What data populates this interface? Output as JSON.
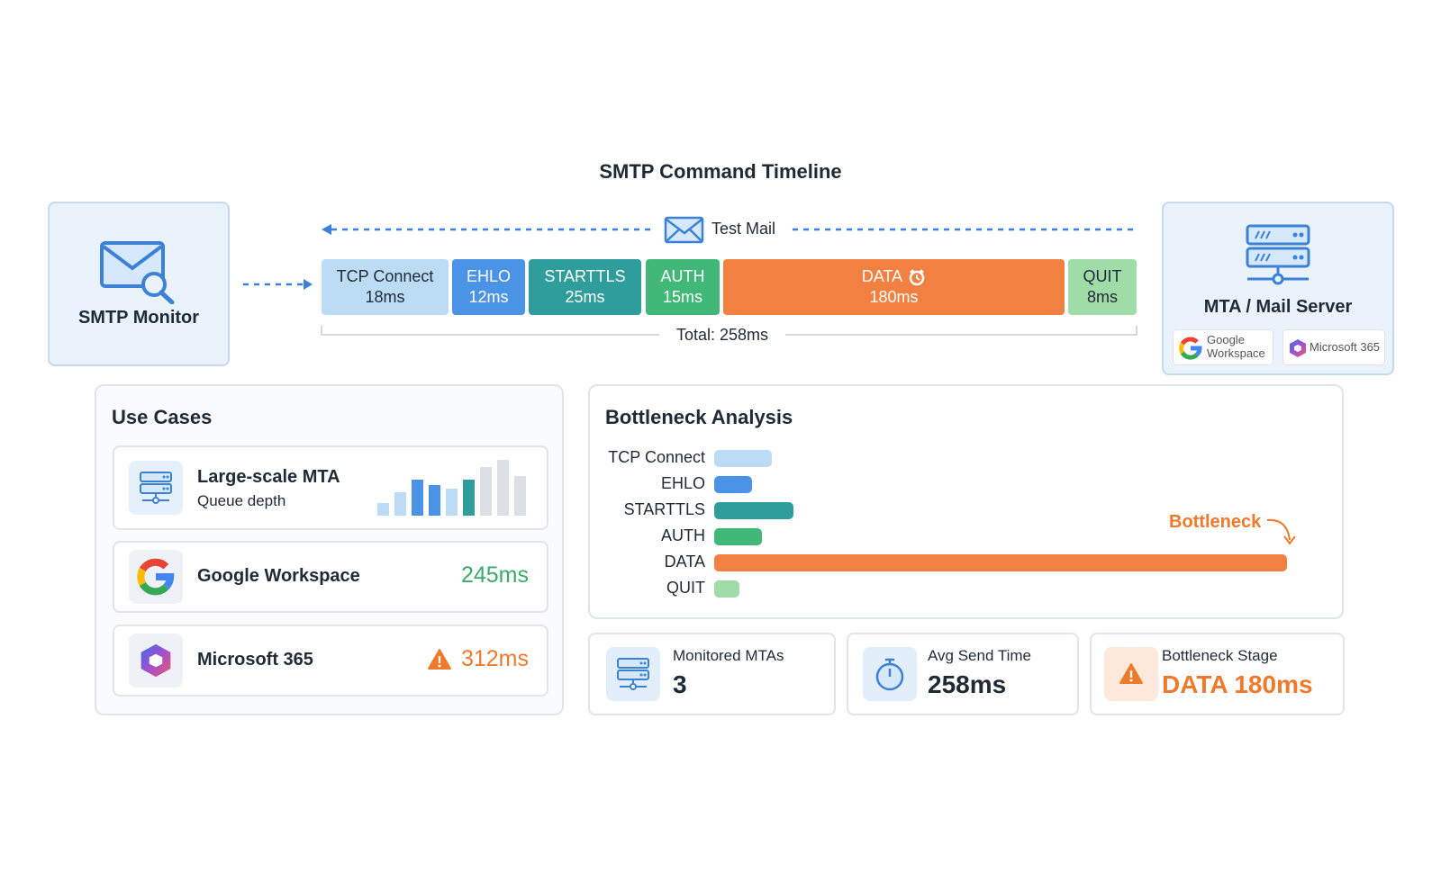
{
  "title": "SMTP Command Timeline",
  "monitor": {
    "label": "SMTP Monitor"
  },
  "test_mail": "Test Mail",
  "timeline": {
    "segments": [
      {
        "name": "TCP Connect",
        "value": 18,
        "value_label": "18ms",
        "color": "#bcdcf6",
        "text_color": "#1f2a37"
      },
      {
        "name": "EHLO",
        "value": 12,
        "value_label": "12ms",
        "color": "#4a93e6",
        "text_color": "#ffffff"
      },
      {
        "name": "STARTTLS",
        "value": 25,
        "value_label": "25ms",
        "color": "#2f9d9b",
        "text_color": "#ffffff"
      },
      {
        "name": "AUTH",
        "value": 15,
        "value_label": "15ms",
        "color": "#41b878",
        "text_color": "#ffffff"
      },
      {
        "name": "DATA",
        "value": 180,
        "value_label": "180ms",
        "color": "#f28040",
        "text_color": "#ffffff"
      },
      {
        "name": "QUIT",
        "value": 8,
        "value_label": "8ms",
        "color": "#a0dca8",
        "text_color": "#1f2a37"
      }
    ],
    "total_label": "Total: 258ms"
  },
  "server": {
    "title": "MTA / Mail Server",
    "badges": [
      "Google Workspace",
      "Microsoft 365"
    ]
  },
  "use_cases": {
    "title": "Use Cases",
    "items": [
      {
        "title": "Large-scale MTA",
        "subtitle": "Queue depth"
      },
      {
        "title": "Google Workspace",
        "value_label": "245ms"
      },
      {
        "title": "Microsoft 365",
        "value_label": "312ms"
      }
    ]
  },
  "bottleneck": {
    "title": "Bottleneck Analysis",
    "annotation": "Bottleneck"
  },
  "stats": [
    {
      "label": "Monitored MTAs",
      "value": "3"
    },
    {
      "label": "Avg Send Time",
      "value": "258ms"
    },
    {
      "label": "Bottleneck Stage",
      "value": "DATA 180ms"
    }
  ]
}
